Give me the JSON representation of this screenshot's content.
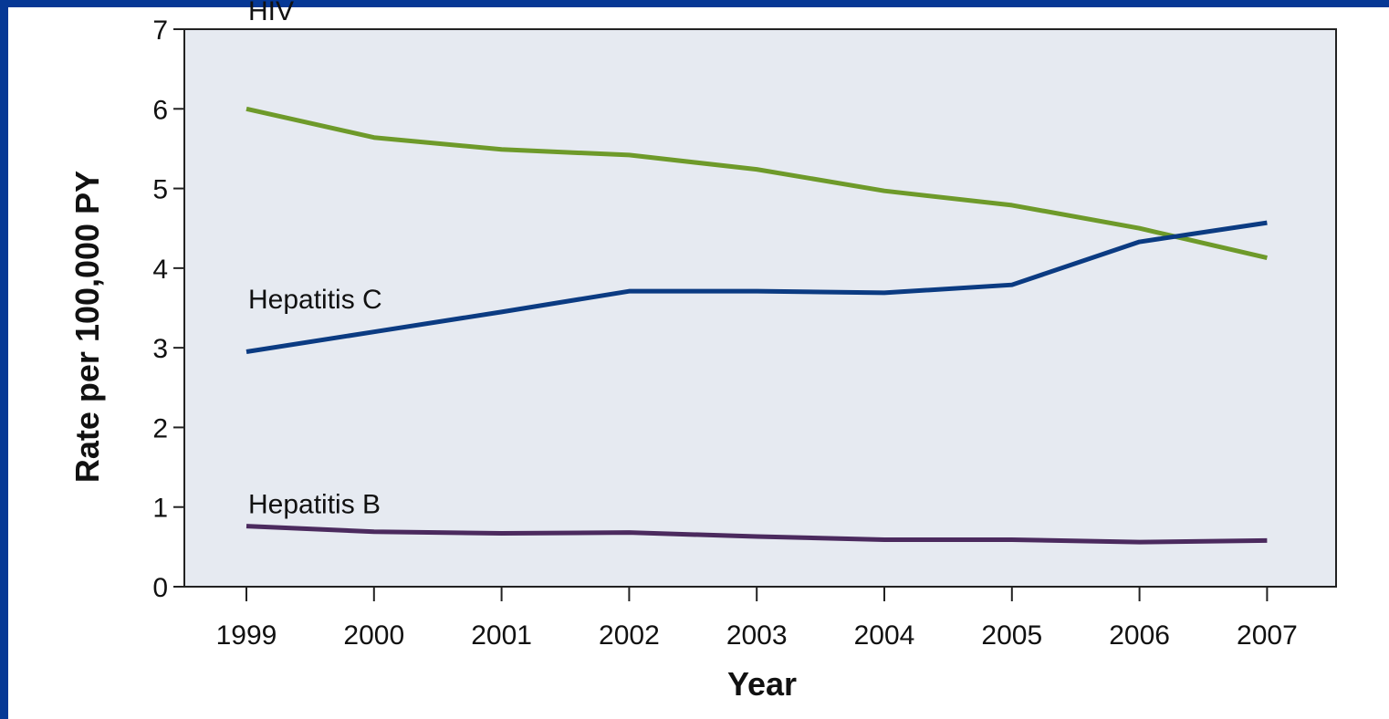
{
  "colors": {
    "border": "#063895",
    "plot_background": "#e6eaf1",
    "hiv": "#6e9a2a",
    "hepatitis_c": "#0b3b82",
    "hepatitis_b": "#4b2a5e"
  },
  "chart_data": {
    "type": "line",
    "xlabel": "Year",
    "ylabel": "Rate per 100,000 PY",
    "ylim": [
      0,
      7
    ],
    "yticks": [
      "0",
      "1",
      "2",
      "3",
      "4",
      "5",
      "6",
      "7"
    ],
    "categories": [
      "1999",
      "2000",
      "2001",
      "2002",
      "2003",
      "2004",
      "2005",
      "2006",
      "2007"
    ],
    "grid": false,
    "series": [
      {
        "name": "HIV",
        "color": "#6e9a2a",
        "values": [
          6.0,
          5.64,
          5.49,
          5.42,
          5.24,
          4.97,
          4.79,
          4.5,
          4.13
        ]
      },
      {
        "name": "Hepatitis C",
        "color": "#0b3b82",
        "values": [
          2.95,
          3.2,
          3.45,
          3.71,
          3.71,
          3.69,
          3.79,
          4.33,
          4.57
        ]
      },
      {
        "name": "Hepatitis B",
        "color": "#4b2a5e",
        "values": [
          0.76,
          0.69,
          0.67,
          0.68,
          0.63,
          0.59,
          0.59,
          0.56,
          0.58
        ]
      }
    ]
  }
}
